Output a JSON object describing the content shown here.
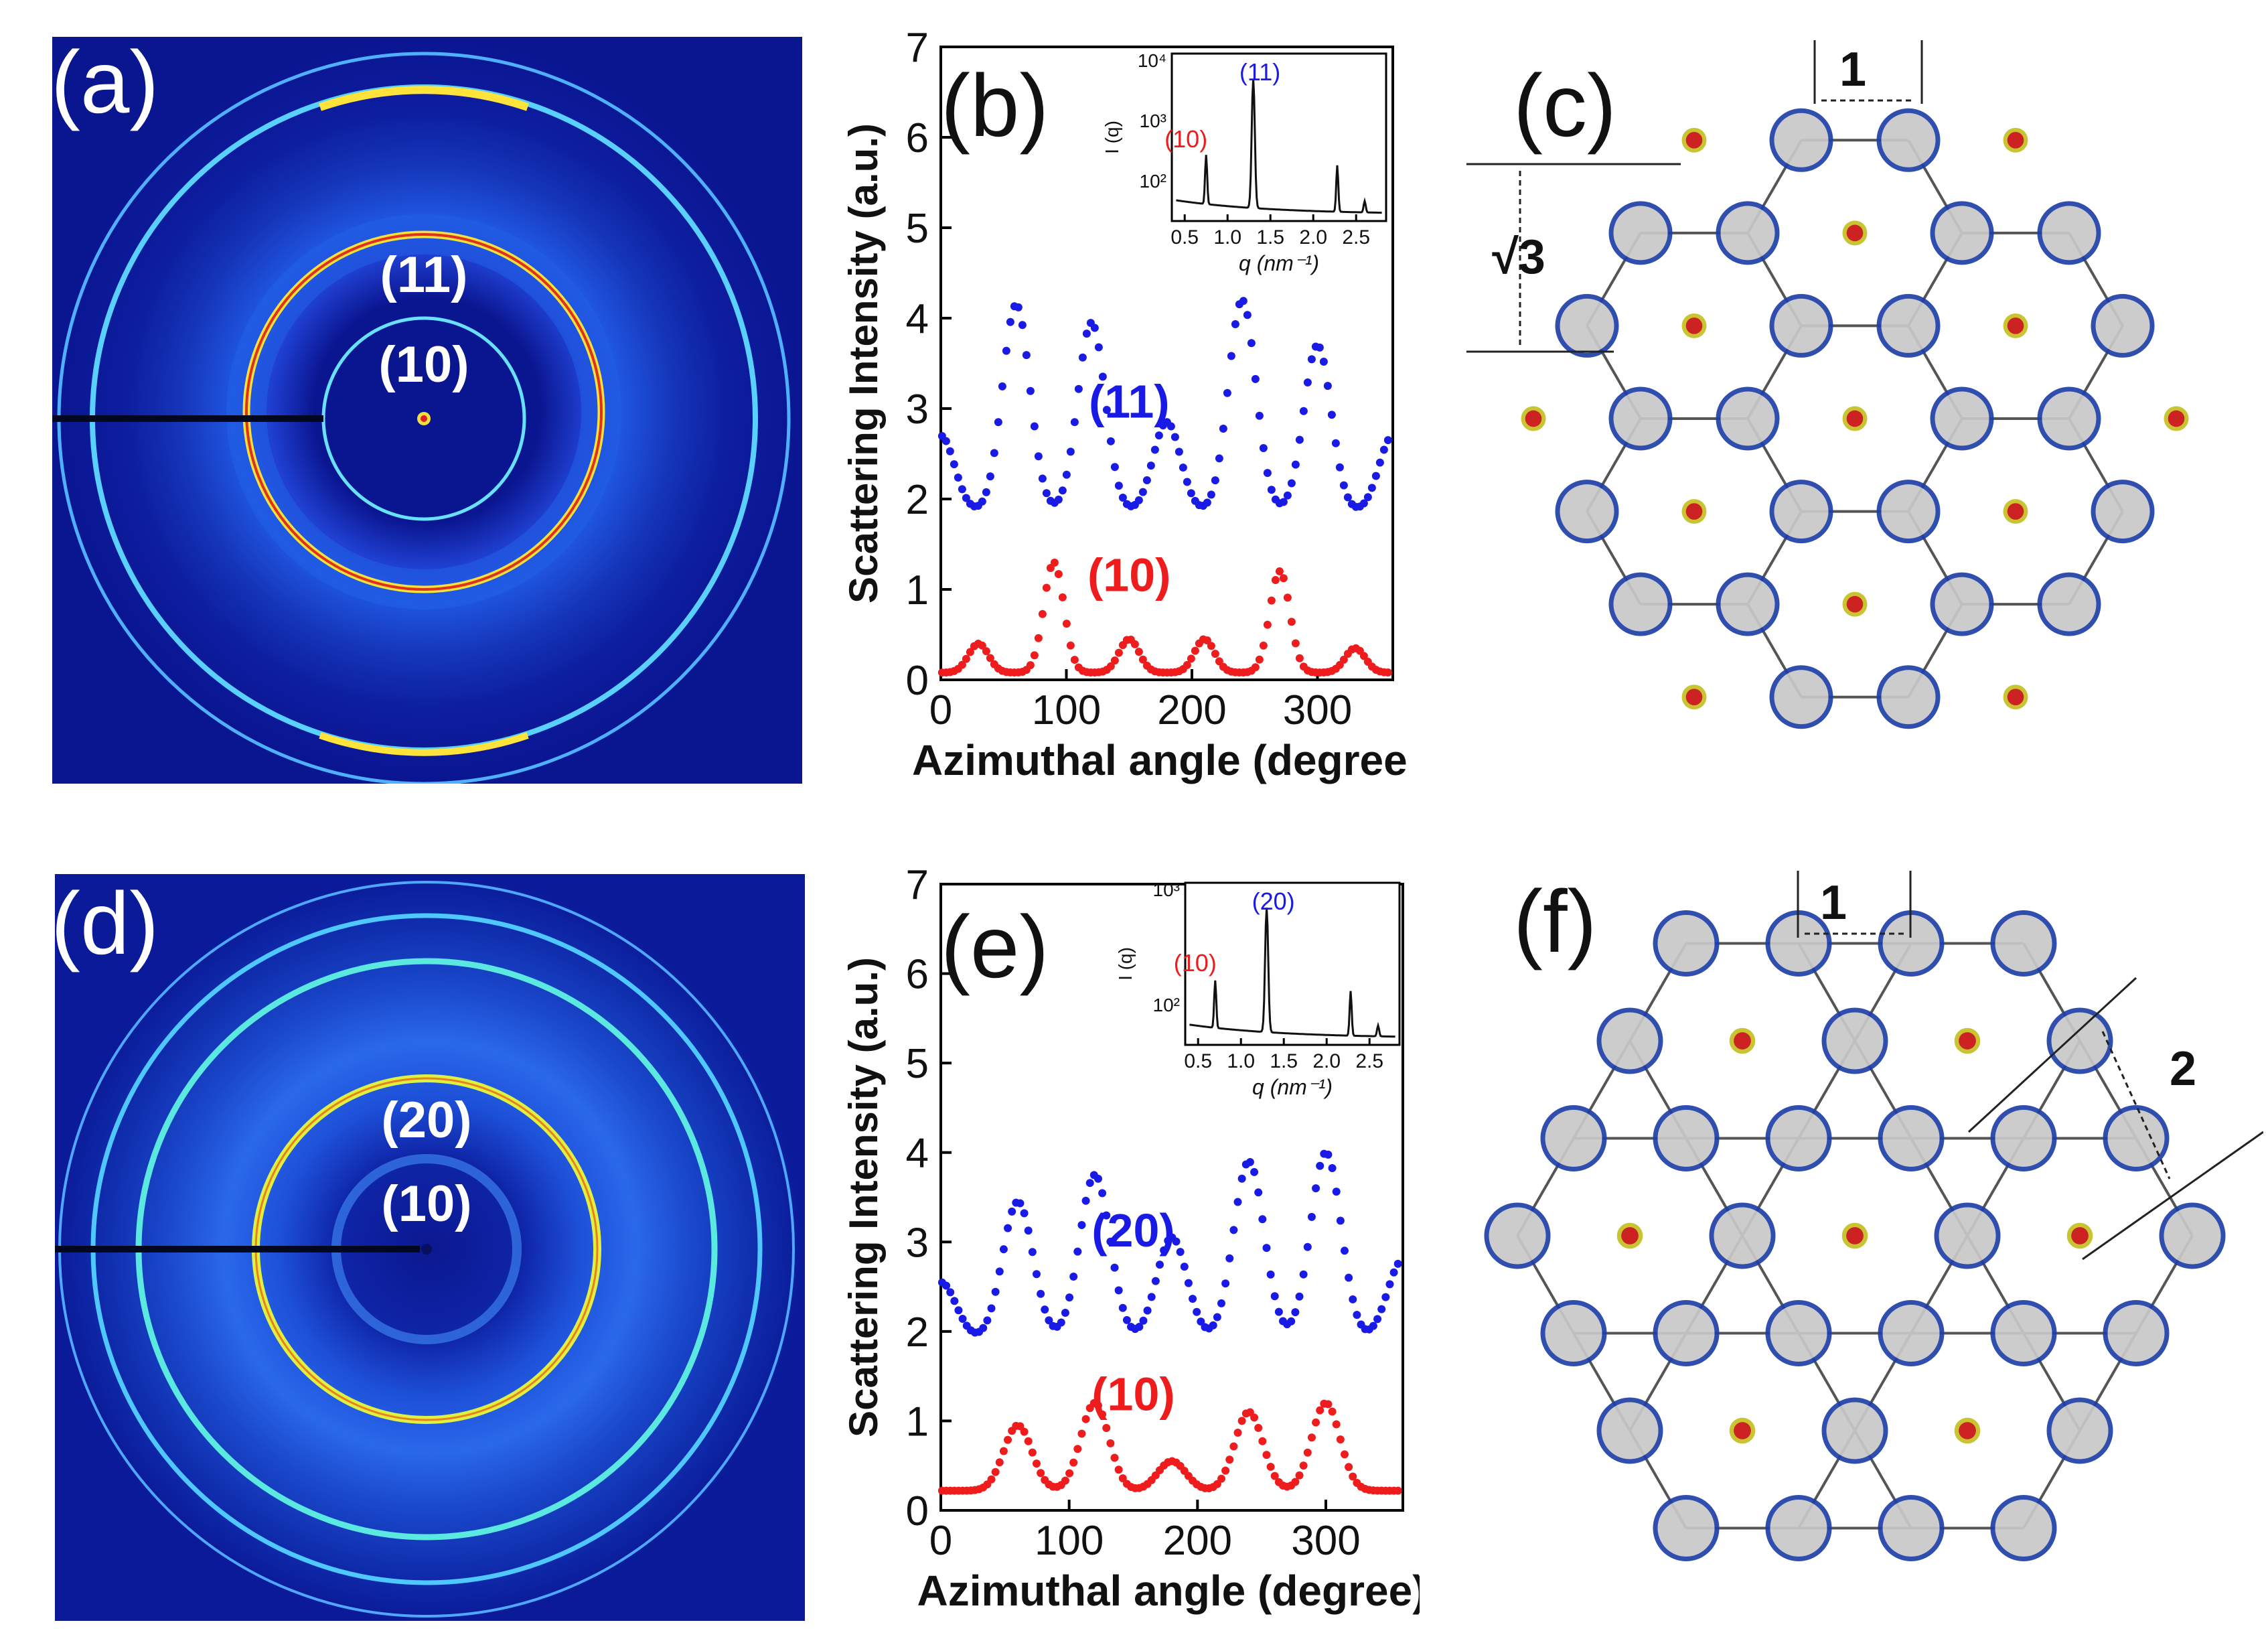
{
  "figure": {
    "panels": {
      "a": {
        "label": "(a)",
        "ring_labels": [
          "(11)",
          "(10)"
        ]
      },
      "d": {
        "label": "(d)",
        "ring_labels": [
          "(20)",
          "(10)"
        ]
      },
      "c": {
        "label": "(c)",
        "dim_horizontal": "1",
        "dim_vertical": "√3"
      },
      "f": {
        "label": "(f)",
        "dim_horizontal": "1",
        "dim_diagonal": "2"
      }
    },
    "colors": {
      "pattern_bg": "#0a1590",
      "series_blue": "#1a1ae6",
      "series_red": "#ee1c1c",
      "lattice_circle_stroke": "#1e3fa8",
      "lattice_circle_fill": "#c8c8c8",
      "dot_outer": "#c8c432",
      "dot_inner": "#cc2222"
    }
  },
  "chart_data": [
    {
      "panel": "(b)",
      "type": "scatter",
      "xlabel": "Azimuthal angle (degree)",
      "ylabel": "Scattering Intensity (a.u.)",
      "xlim": [
        0,
        360
      ],
      "ylim": [
        0,
        7
      ],
      "xticks": [
        0,
        100,
        200,
        300
      ],
      "yticks": [
        0,
        1,
        2,
        3,
        4,
        5,
        6,
        7
      ],
      "series": [
        {
          "name": "(11)",
          "color": "#1a1ae6",
          "peaks": [
            {
              "center": 0,
              "height": 2.7
            },
            {
              "center": 60,
              "height": 4.15
            },
            {
              "center": 120,
              "height": 3.95
            },
            {
              "center": 180,
              "height": 2.85
            },
            {
              "center": 240,
              "height": 4.2
            },
            {
              "center": 300,
              "height": 3.7
            },
            {
              "center": 360,
              "height": 2.7
            }
          ],
          "baseline": 1.85,
          "width": 11
        },
        {
          "name": "(10)",
          "color": "#ee1c1c",
          "peaks": [
            {
              "center": 30,
              "height": 0.4
            },
            {
              "center": 90,
              "height": 1.3
            },
            {
              "center": 150,
              "height": 0.45
            },
            {
              "center": 210,
              "height": 0.45
            },
            {
              "center": 270,
              "height": 1.2
            },
            {
              "center": 330,
              "height": 0.35
            }
          ],
          "baseline": 0.08,
          "width": 8
        }
      ],
      "inset": {
        "type": "line",
        "xlabel": "q (nm⁻¹)",
        "ylabel": "I (q)",
        "xticks": [
          "0.5",
          "1.0",
          "1.5",
          "2.0",
          "2.5"
        ],
        "yticks": [
          "10²",
          "10³",
          "10⁴"
        ],
        "annotations": [
          {
            "text": "(11)",
            "color": "#1a1ae6",
            "q": 1.3
          },
          {
            "text": "(10)",
            "color": "#ee1c1c",
            "q": 0.75
          }
        ],
        "peaks_q": [
          0.75,
          1.3,
          2.28,
          2.6
        ]
      }
    },
    {
      "panel": "(e)",
      "type": "scatter",
      "xlabel": "Azimuthal angle (degree)",
      "ylabel": "Scattering Intensity (a.u.)",
      "xlim": [
        0,
        360
      ],
      "ylim": [
        0,
        7
      ],
      "xticks": [
        0,
        100,
        200,
        300
      ],
      "yticks": [
        0,
        1,
        2,
        3,
        4,
        5,
        6,
        7
      ],
      "series": [
        {
          "name": "(20)",
          "color": "#1a1ae6",
          "peaks": [
            {
              "center": 0,
              "height": 2.55
            },
            {
              "center": 60,
              "height": 3.45
            },
            {
              "center": 120,
              "height": 3.75
            },
            {
              "center": 180,
              "height": 3.05
            },
            {
              "center": 240,
              "height": 3.9
            },
            {
              "center": 300,
              "height": 4.0
            },
            {
              "center": 360,
              "height": 2.8
            }
          ],
          "baseline": 1.9,
          "width": 12
        },
        {
          "name": "(10)",
          "color": "#ee1c1c",
          "peaks": [
            {
              "center": 60,
              "height": 0.95
            },
            {
              "center": 120,
              "height": 1.2
            },
            {
              "center": 180,
              "height": 0.55
            },
            {
              "center": 240,
              "height": 1.1
            },
            {
              "center": 300,
              "height": 1.2
            }
          ],
          "baseline": 0.22,
          "width": 11
        }
      ],
      "inset": {
        "type": "line",
        "xlabel": "q (nm⁻¹)",
        "ylabel": "I (q)",
        "xticks": [
          "0.5",
          "1.0",
          "1.5",
          "2.0",
          "2.5"
        ],
        "yticks": [
          "10²",
          "10³"
        ],
        "annotations": [
          {
            "text": "(20)",
            "color": "#1a1ae6",
            "q": 1.3
          },
          {
            "text": "(10)",
            "color": "#ee1c1c",
            "q": 0.7
          }
        ],
        "peaks_q": [
          0.7,
          1.3,
          2.28,
          2.6
        ]
      }
    }
  ]
}
